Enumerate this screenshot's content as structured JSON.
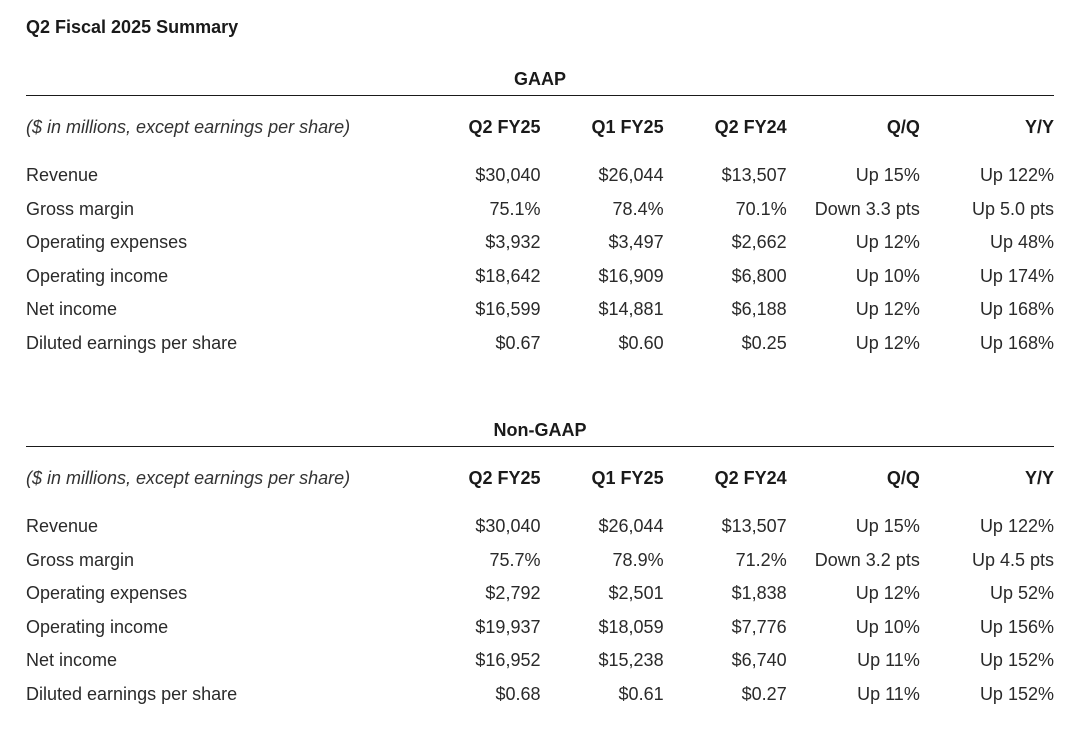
{
  "title": "Q2 Fiscal 2025 Summary",
  "units_note": "($ in millions, except earnings per share)",
  "columns": [
    "Q2 FY25",
    "Q1 FY25",
    "Q2 FY24",
    "Q/Q",
    "Y/Y"
  ],
  "sections": [
    {
      "heading": "GAAP",
      "rows": [
        {
          "label": "Revenue",
          "values": [
            "$30,040",
            "$26,044",
            "$13,507",
            "Up 15%",
            "Up 122%"
          ]
        },
        {
          "label": "Gross margin",
          "values": [
            "75.1%",
            "78.4%",
            "70.1%",
            "Down 3.3 pts",
            "Up 5.0 pts"
          ]
        },
        {
          "label": "Operating expenses",
          "values": [
            "$3,932",
            "$3,497",
            "$2,662",
            "Up 12%",
            "Up 48%"
          ]
        },
        {
          "label": "Operating income",
          "values": [
            "$18,642",
            "$16,909",
            "$6,800",
            "Up 10%",
            "Up 174%"
          ]
        },
        {
          "label": "Net income",
          "values": [
            "$16,599",
            "$14,881",
            "$6,188",
            "Up 12%",
            "Up 168%"
          ]
        },
        {
          "label": "Diluted earnings per share",
          "values": [
            "$0.67",
            "$0.60",
            "$0.25",
            "Up 12%",
            "Up 168%"
          ]
        }
      ]
    },
    {
      "heading": "Non-GAAP",
      "rows": [
        {
          "label": "Revenue",
          "values": [
            "$30,040",
            "$26,044",
            "$13,507",
            "Up 15%",
            "Up 122%"
          ]
        },
        {
          "label": "Gross margin",
          "values": [
            "75.7%",
            "78.9%",
            "71.2%",
            "Down 3.2 pts",
            "Up 4.5 pts"
          ]
        },
        {
          "label": "Operating expenses",
          "values": [
            "$2,792",
            "$2,501",
            "$1,838",
            "Up 12%",
            "Up 52%"
          ]
        },
        {
          "label": "Operating income",
          "values": [
            "$19,937",
            "$18,059",
            "$7,776",
            "Up 10%",
            "Up 156%"
          ]
        },
        {
          "label": "Net income",
          "values": [
            "$16,952",
            "$15,238",
            "$6,740",
            "Up 11%",
            "Up 152%"
          ]
        },
        {
          "label": "Diluted earnings per share",
          "values": [
            "$0.68",
            "$0.61",
            "$0.27",
            "Up 11%",
            "Up 152%"
          ]
        }
      ]
    }
  ]
}
